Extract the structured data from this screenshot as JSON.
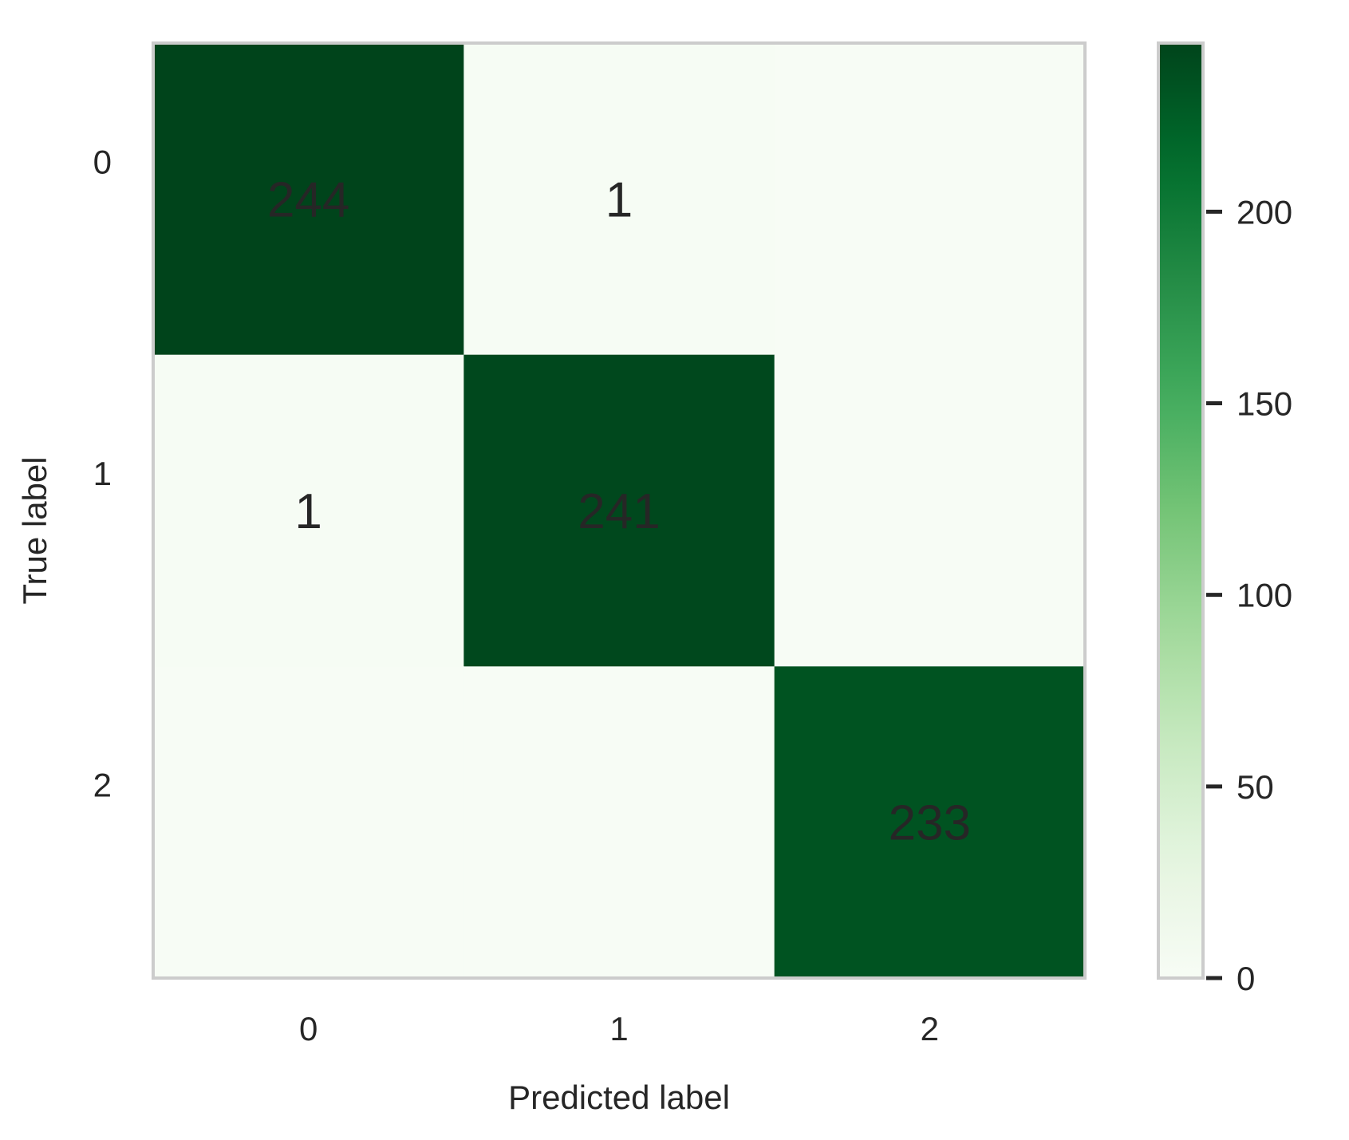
{
  "chart_data": {
    "type": "heatmap",
    "title": "",
    "xlabel": "Predicted label",
    "ylabel": "True label",
    "x_categories": [
      "0",
      "1",
      "2"
    ],
    "y_categories": [
      "0",
      "1",
      "2"
    ],
    "matrix": [
      [
        244,
        1,
        0
      ],
      [
        1,
        241,
        0
      ],
      [
        0,
        0,
        233
      ]
    ],
    "cell_labels": [
      [
        "244",
        "1",
        ""
      ],
      [
        "1",
        "241",
        ""
      ],
      [
        "",
        "",
        "233"
      ]
    ],
    "colormap": "Greens",
    "colorbar": {
      "range": [
        0,
        244
      ],
      "ticks": [
        0,
        50,
        100,
        150,
        200
      ],
      "tick_labels": [
        "0",
        "50",
        "100",
        "150",
        "200"
      ]
    },
    "grid": false,
    "colors": {
      "low": "#f7fcf5",
      "high": "#00441b",
      "frame": "#cccccc",
      "text": "#262626"
    }
  }
}
